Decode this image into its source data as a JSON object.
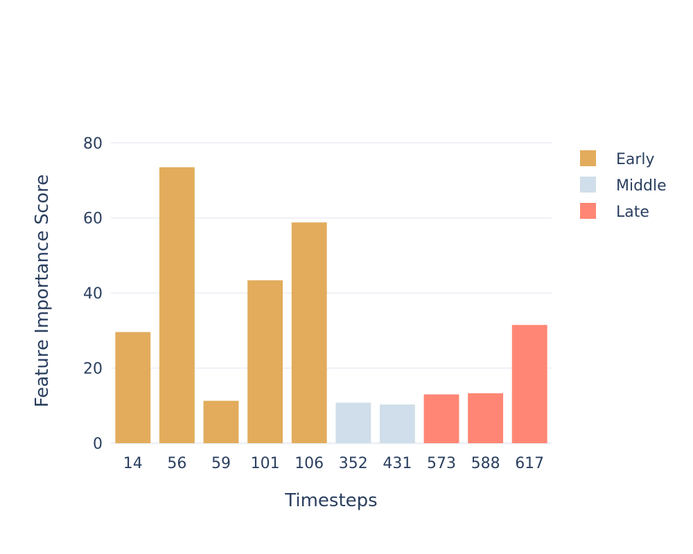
{
  "chart_data": {
    "type": "bar",
    "title": "",
    "xlabel": "Timesteps",
    "ylabel": "Feature Importance Score",
    "ylim": [
      0,
      83
    ],
    "yticks": [
      0,
      20,
      40,
      60,
      80
    ],
    "grid": true,
    "legend_position": "right",
    "categories": [
      "14",
      "56",
      "59",
      "101",
      "106",
      "352",
      "431",
      "573",
      "588",
      "617"
    ],
    "values": [
      29.6,
      73.5,
      11.3,
      43.4,
      58.8,
      10.8,
      10.3,
      13.0,
      13.3,
      31.5
    ],
    "groups": [
      "Early",
      "Early",
      "Early",
      "Early",
      "Early",
      "Middle",
      "Middle",
      "Late",
      "Late",
      "Late"
    ],
    "legend": [
      {
        "name": "Early",
        "color": "#e2ac5c"
      },
      {
        "name": "Middle",
        "color": "#cfdeea"
      },
      {
        "name": "Late",
        "color": "#ff8674"
      }
    ],
    "colors": {
      "grid": "#eef0f6",
      "text": "#2a3f5f",
      "background": "#ffffff"
    }
  }
}
